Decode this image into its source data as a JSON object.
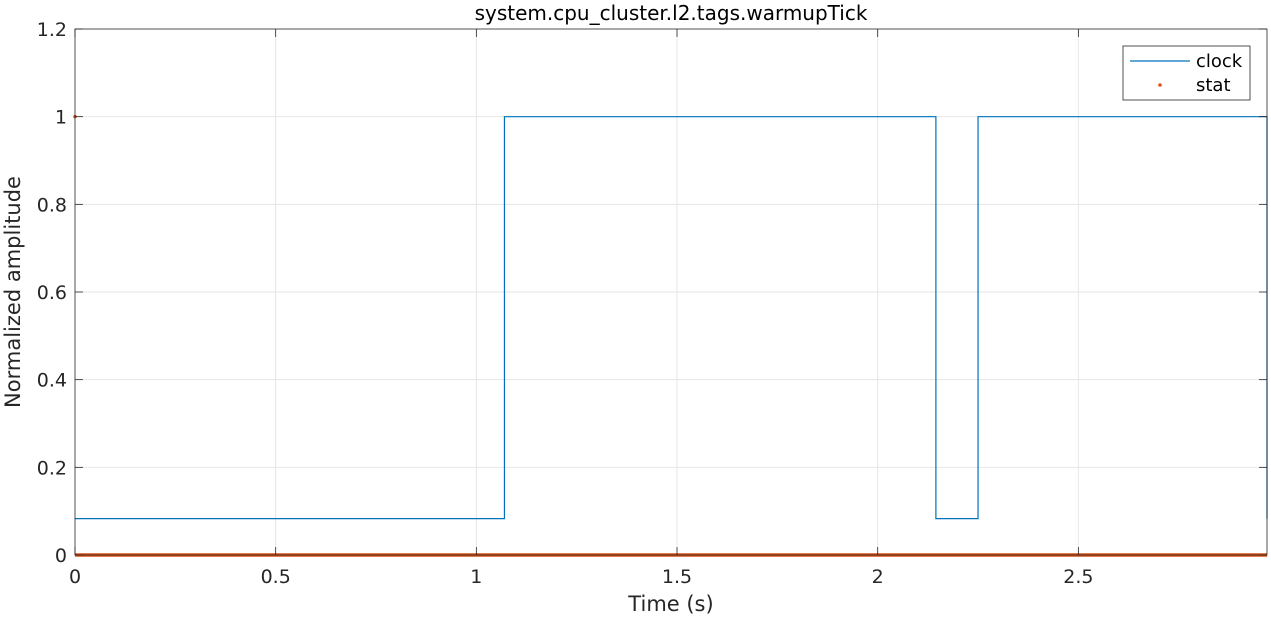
{
  "chart_data": {
    "type": "line",
    "title": "system.cpu_cluster.l2.tags.warmupTick",
    "xlabel": "Time (s)",
    "ylabel": "Normalized amplitude",
    "xlim": [
      0,
      2.97
    ],
    "ylim": [
      0,
      1.2
    ],
    "xticks": [
      "0",
      "0.5",
      "1",
      "1.5",
      "2",
      "2.5"
    ],
    "xtick_values": [
      0,
      0.5,
      1,
      1.5,
      2,
      2.5
    ],
    "yticks": [
      "0",
      "0.2",
      "0.4",
      "0.6",
      "0.8",
      "1",
      "1.2"
    ],
    "ytick_values": [
      0,
      0.2,
      0.4,
      0.6,
      0.8,
      1,
      1.2
    ],
    "grid": true,
    "legend_position": "top-right",
    "series": [
      {
        "name": "clock",
        "style": "step-line",
        "color": "#0072BD",
        "x": [
          0,
          1.07,
          1.07,
          2.145,
          2.145,
          2.25,
          2.25,
          2.97,
          2.97
        ],
        "y": [
          0.083,
          0.083,
          1,
          1,
          0.083,
          0.083,
          1,
          1,
          0.083
        ]
      },
      {
        "name": "stat",
        "style": "dots",
        "color": "#D95319",
        "x": [
          0,
          2.97
        ],
        "y": [
          0,
          0
        ],
        "extra_points": [
          {
            "x": 0,
            "y": 1
          }
        ]
      }
    ]
  }
}
